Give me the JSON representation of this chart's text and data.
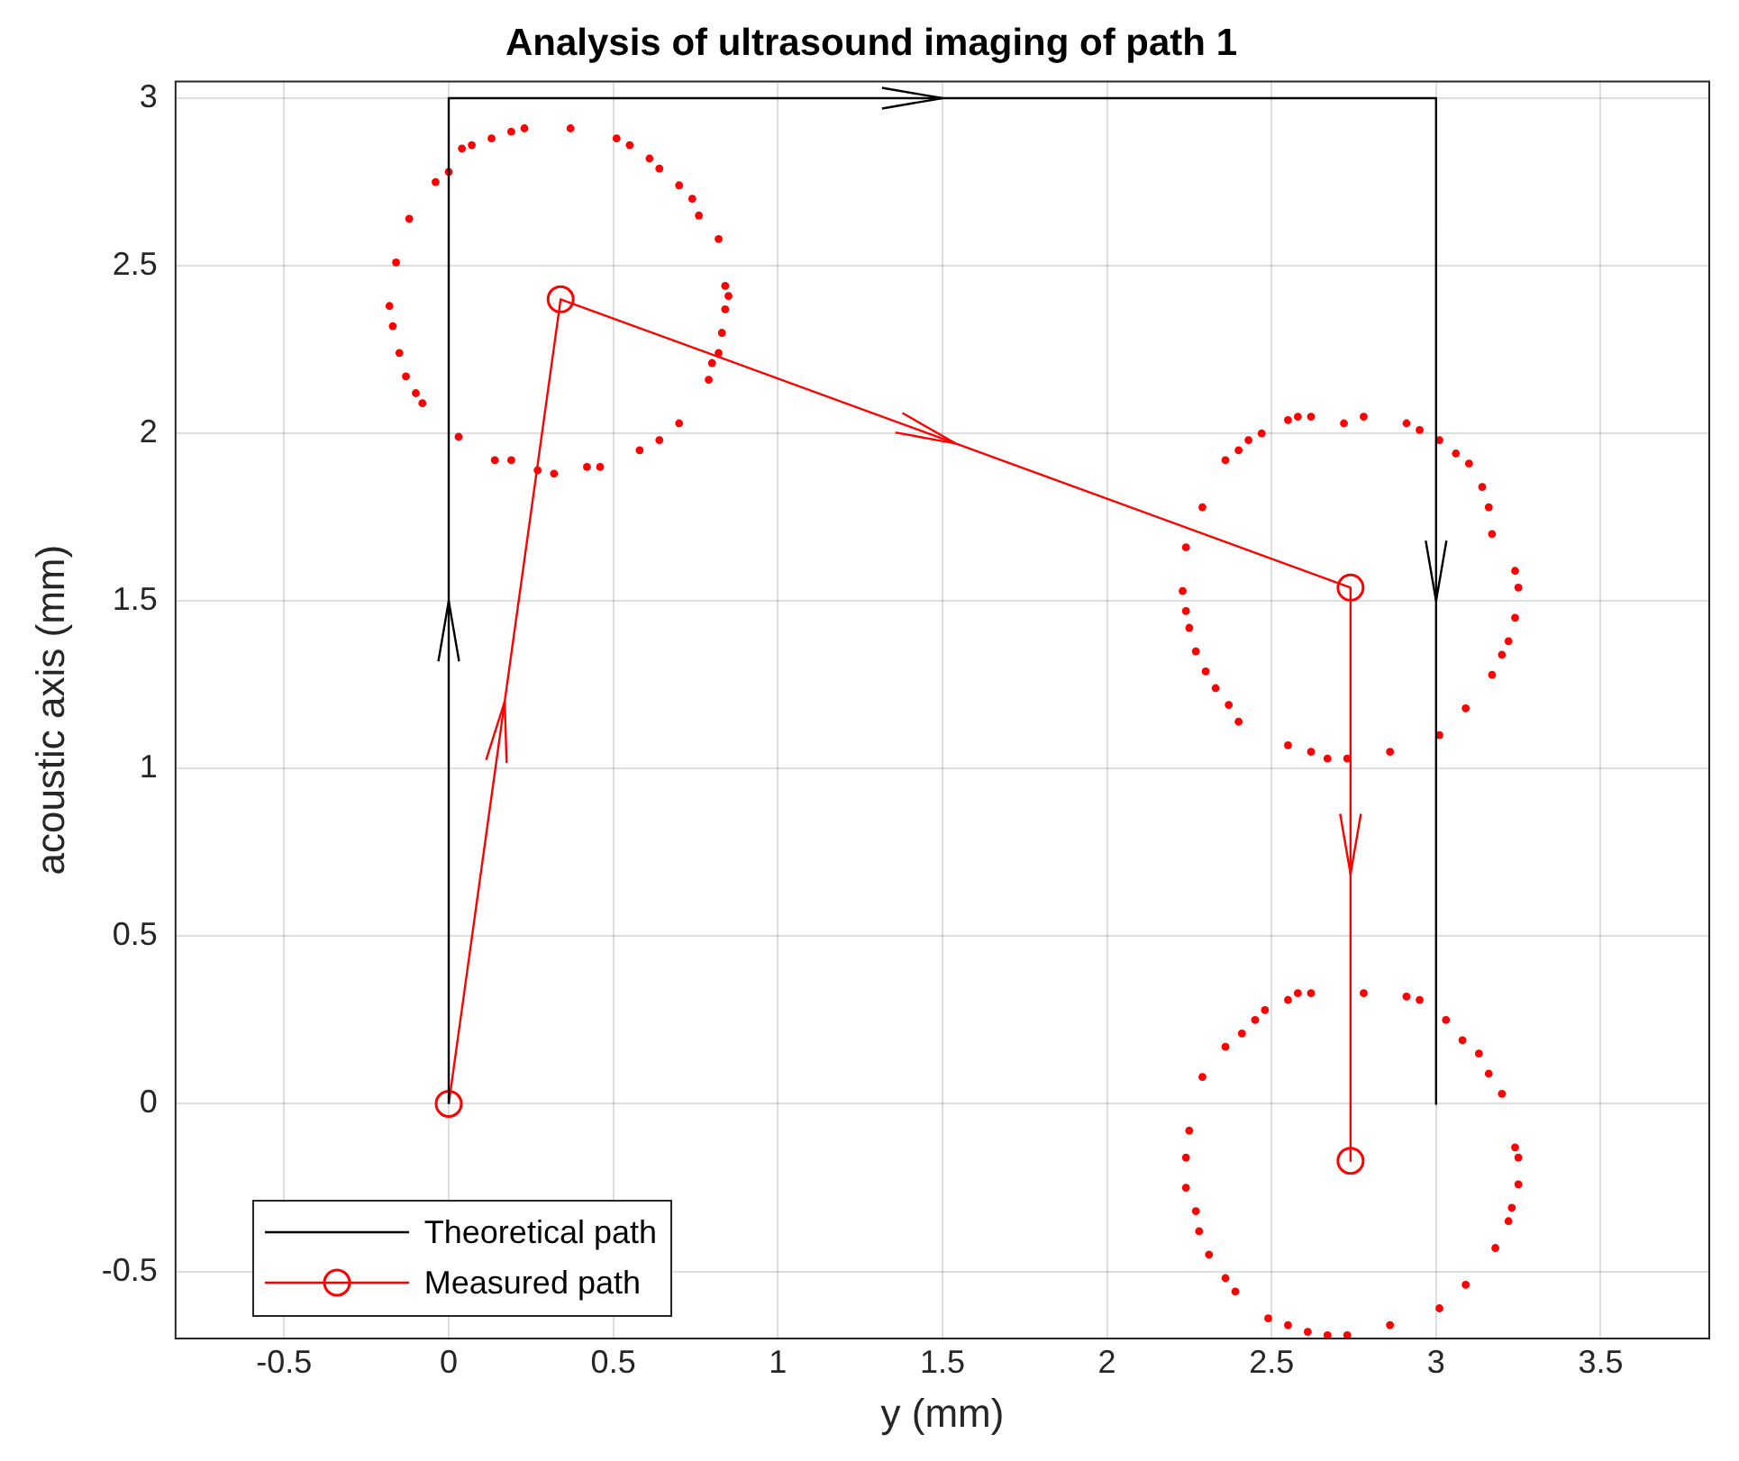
{
  "chart_data": {
    "type": "line",
    "title": "Analysis of ultrasound imaging of path 1",
    "xlabel": "y (mm)",
    "ylabel": "acoustic axis (mm)",
    "xlim": [
      -0.83,
      3.83
    ],
    "ylim": [
      -0.7,
      3.05
    ],
    "xticks": [
      -0.5,
      0,
      0.5,
      1,
      1.5,
      2,
      2.5,
      3,
      3.5
    ],
    "yticks": [
      -0.5,
      0,
      0.5,
      1,
      1.5,
      2,
      2.5,
      3
    ],
    "grid": true,
    "legend": "bottom left",
    "series": [
      {
        "name": "Theoretical path",
        "type": "line",
        "color": "#000000",
        "marker": "none",
        "x": [
          0,
          0,
          3,
          3
        ],
        "values": [
          0,
          3,
          3,
          0
        ]
      },
      {
        "name": "Measured path",
        "type": "line",
        "color": "#ff0000",
        "marker": "circle",
        "x": [
          0,
          0.34,
          2.74,
          2.74
        ],
        "values": [
          0,
          2.4,
          1.54,
          -0.17
        ]
      },
      {
        "type": "scatter",
        "color": "#ff0000",
        "marker": "circle",
        "x": [
          0.37,
          0.51,
          0.55,
          0.61,
          0.64,
          0.7,
          0.74,
          0.76,
          0.82,
          0.84,
          0.85,
          0.84,
          0.83,
          0.82,
          0.8,
          0.79,
          0.7,
          0.64,
          0.58,
          0.46,
          0.42,
          0.32,
          0.27,
          0.19,
          0.14,
          0.03,
          -0.08,
          -0.1,
          -0.13,
          -0.15,
          -0.17,
          -0.18,
          -0.16,
          -0.12,
          -0.04,
          0,
          0.04,
          0.07,
          0.13,
          0.19,
          0.23
        ],
        "values": [
          2.91,
          2.88,
          2.86,
          2.82,
          2.79,
          2.74,
          2.7,
          2.65,
          2.58,
          2.44,
          2.41,
          2.37,
          2.3,
          2.24,
          2.21,
          2.16,
          2.03,
          1.98,
          1.95,
          1.9,
          1.9,
          1.88,
          1.89,
          1.92,
          1.92,
          1.99,
          2.09,
          2.12,
          2.17,
          2.24,
          2.32,
          2.38,
          2.51,
          2.64,
          2.75,
          2.78,
          2.85,
          2.86,
          2.88,
          2.9,
          2.91
        ]
      },
      {
        "type": "scatter",
        "color": "#ff0000",
        "marker": "circle",
        "x": [
          2.62,
          2.72,
          2.78,
          2.91,
          2.95,
          3.01,
          3.06,
          3.1,
          3.14,
          3.16,
          3.17,
          3.24,
          3.25,
          3.24,
          3.22,
          3.2,
          3.17,
          3.09,
          3.01,
          2.86,
          2.73,
          2.67,
          2.62,
          2.55,
          2.4,
          2.37,
          2.33,
          2.3,
          2.27,
          2.25,
          2.24,
          2.23,
          2.24,
          2.29,
          2.36,
          2.4,
          2.43,
          2.47,
          2.55,
          2.58
        ],
        "values": [
          2.05,
          2.03,
          2.05,
          2.03,
          2.01,
          1.98,
          1.94,
          1.91,
          1.84,
          1.78,
          1.7,
          1.59,
          1.54,
          1.45,
          1.38,
          1.34,
          1.28,
          1.18,
          1.1,
          1.05,
          1.03,
          1.03,
          1.05,
          1.07,
          1.14,
          1.19,
          1.24,
          1.29,
          1.35,
          1.42,
          1.47,
          1.53,
          1.66,
          1.78,
          1.92,
          1.95,
          1.98,
          2.0,
          2.04,
          2.05
        ]
      },
      {
        "type": "scatter",
        "color": "#ff0000",
        "marker": "circle",
        "x": [
          2.62,
          2.78,
          2.91,
          2.95,
          3.03,
          3.08,
          3.13,
          3.16,
          3.2,
          3.24,
          3.25,
          3.25,
          3.23,
          3.22,
          3.18,
          3.09,
          3.01,
          2.86,
          2.73,
          2.67,
          2.61,
          2.55,
          2.49,
          2.39,
          2.36,
          2.31,
          2.28,
          2.27,
          2.24,
          2.24,
          2.25,
          2.29,
          2.36,
          2.41,
          2.45,
          2.48,
          2.55,
          2.58
        ],
        "values": [
          0.33,
          0.33,
          0.32,
          0.31,
          0.25,
          0.19,
          0.15,
          0.09,
          0.03,
          -0.13,
          -0.16,
          -0.24,
          -0.31,
          -0.35,
          -0.43,
          -0.54,
          -0.61,
          -0.66,
          -0.69,
          -0.69,
          -0.68,
          -0.66,
          -0.64,
          -0.56,
          -0.52,
          -0.45,
          -0.38,
          -0.32,
          -0.25,
          -0.16,
          -0.08,
          0.08,
          0.17,
          0.21,
          0.25,
          0.28,
          0.31,
          0.33
        ]
      }
    ]
  }
}
